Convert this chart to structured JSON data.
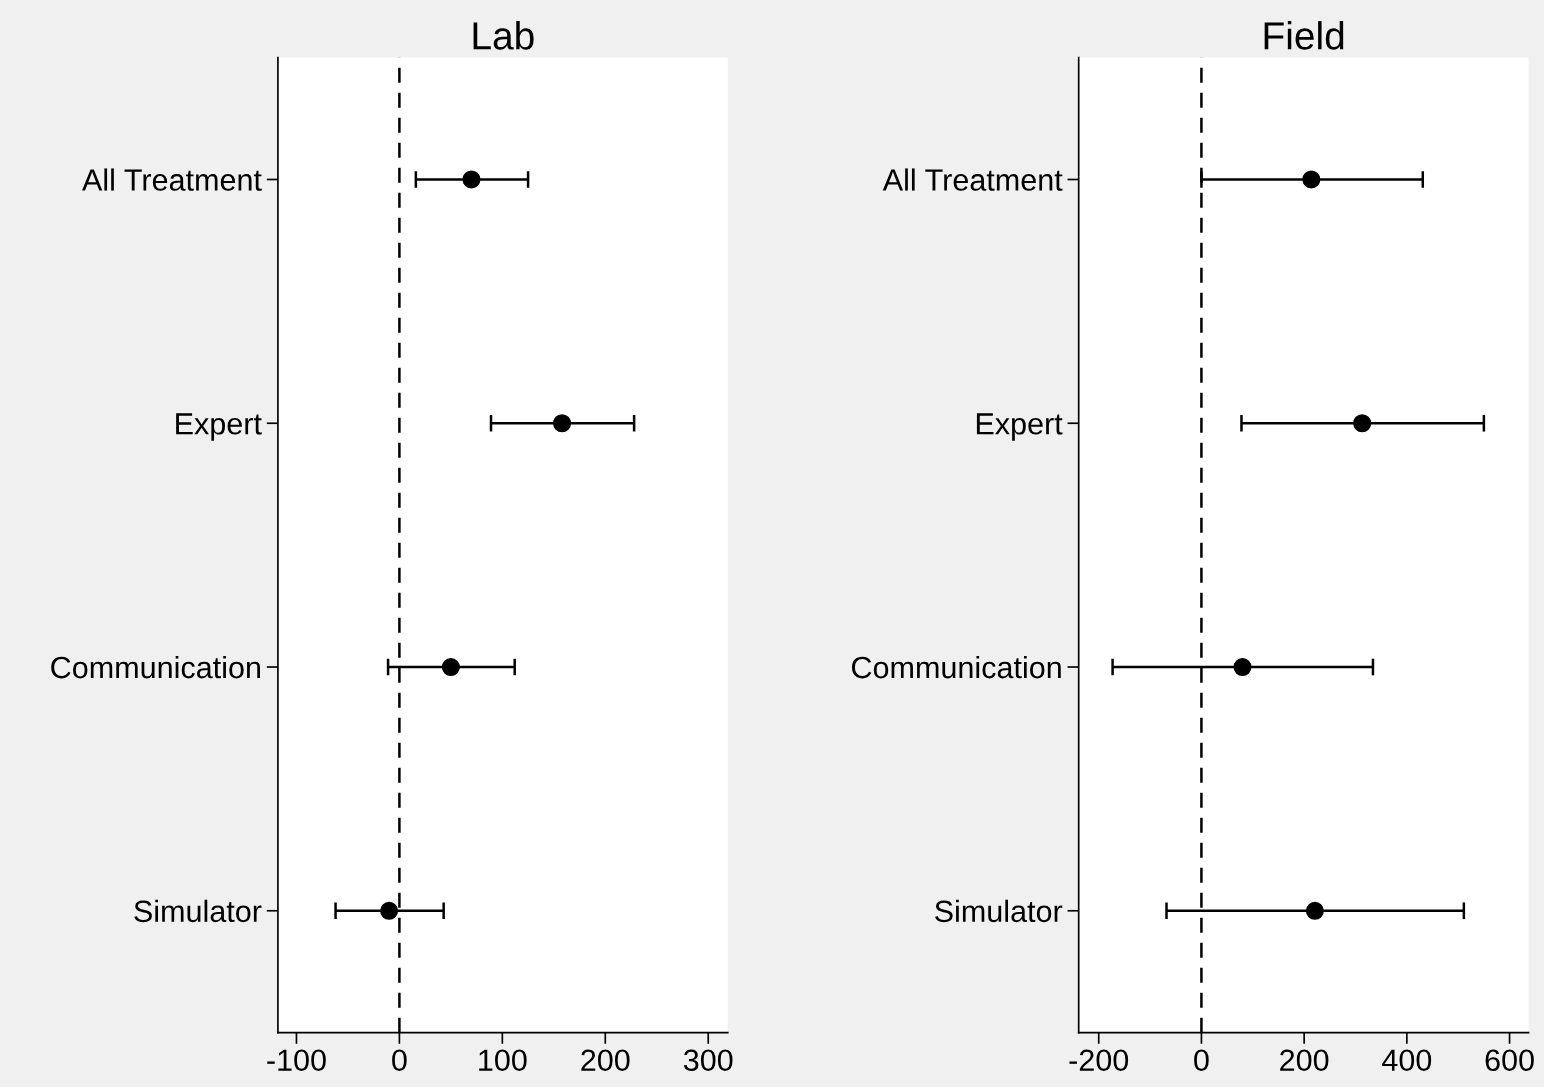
{
  "chart_data": [
    {
      "type": "scatter",
      "title": "Lab",
      "orientation": "horizontal",
      "categories": [
        "All Treatment",
        "Expert",
        "Communication",
        "Simulator"
      ],
      "values": [
        70,
        158,
        50,
        -10
      ],
      "errors": [
        [
          16,
          125
        ],
        [
          89,
          228
        ],
        [
          -11,
          112
        ],
        [
          -62,
          43
        ]
      ],
      "color": "#000000",
      "marker": "circle",
      "xlim": [
        -118,
        319
      ],
      "xticks": [
        -100,
        0,
        100,
        200,
        300
      ],
      "ref_lines": [
        {
          "axis": "x",
          "value": 0,
          "color": "#000000",
          "line_style": "dashed"
        }
      ]
    },
    {
      "type": "scatter",
      "title": "Field",
      "orientation": "horizontal",
      "categories": [
        "All Treatment",
        "Expert",
        "Communication",
        "Simulator"
      ],
      "values": [
        214,
        313,
        80,
        221
      ],
      "errors": [
        [
          0,
          431
        ],
        [
          78,
          550
        ],
        [
          -173,
          334
        ],
        [
          -68,
          511
        ]
      ],
      "color": "#000000",
      "marker": "circle",
      "xlim": [
        -239,
        637
      ],
      "xticks": [
        -200,
        0,
        200,
        400,
        600
      ],
      "ref_lines": [
        {
          "axis": "x",
          "value": 0,
          "color": "#000000",
          "line_style": "dashed"
        }
      ]
    }
  ]
}
